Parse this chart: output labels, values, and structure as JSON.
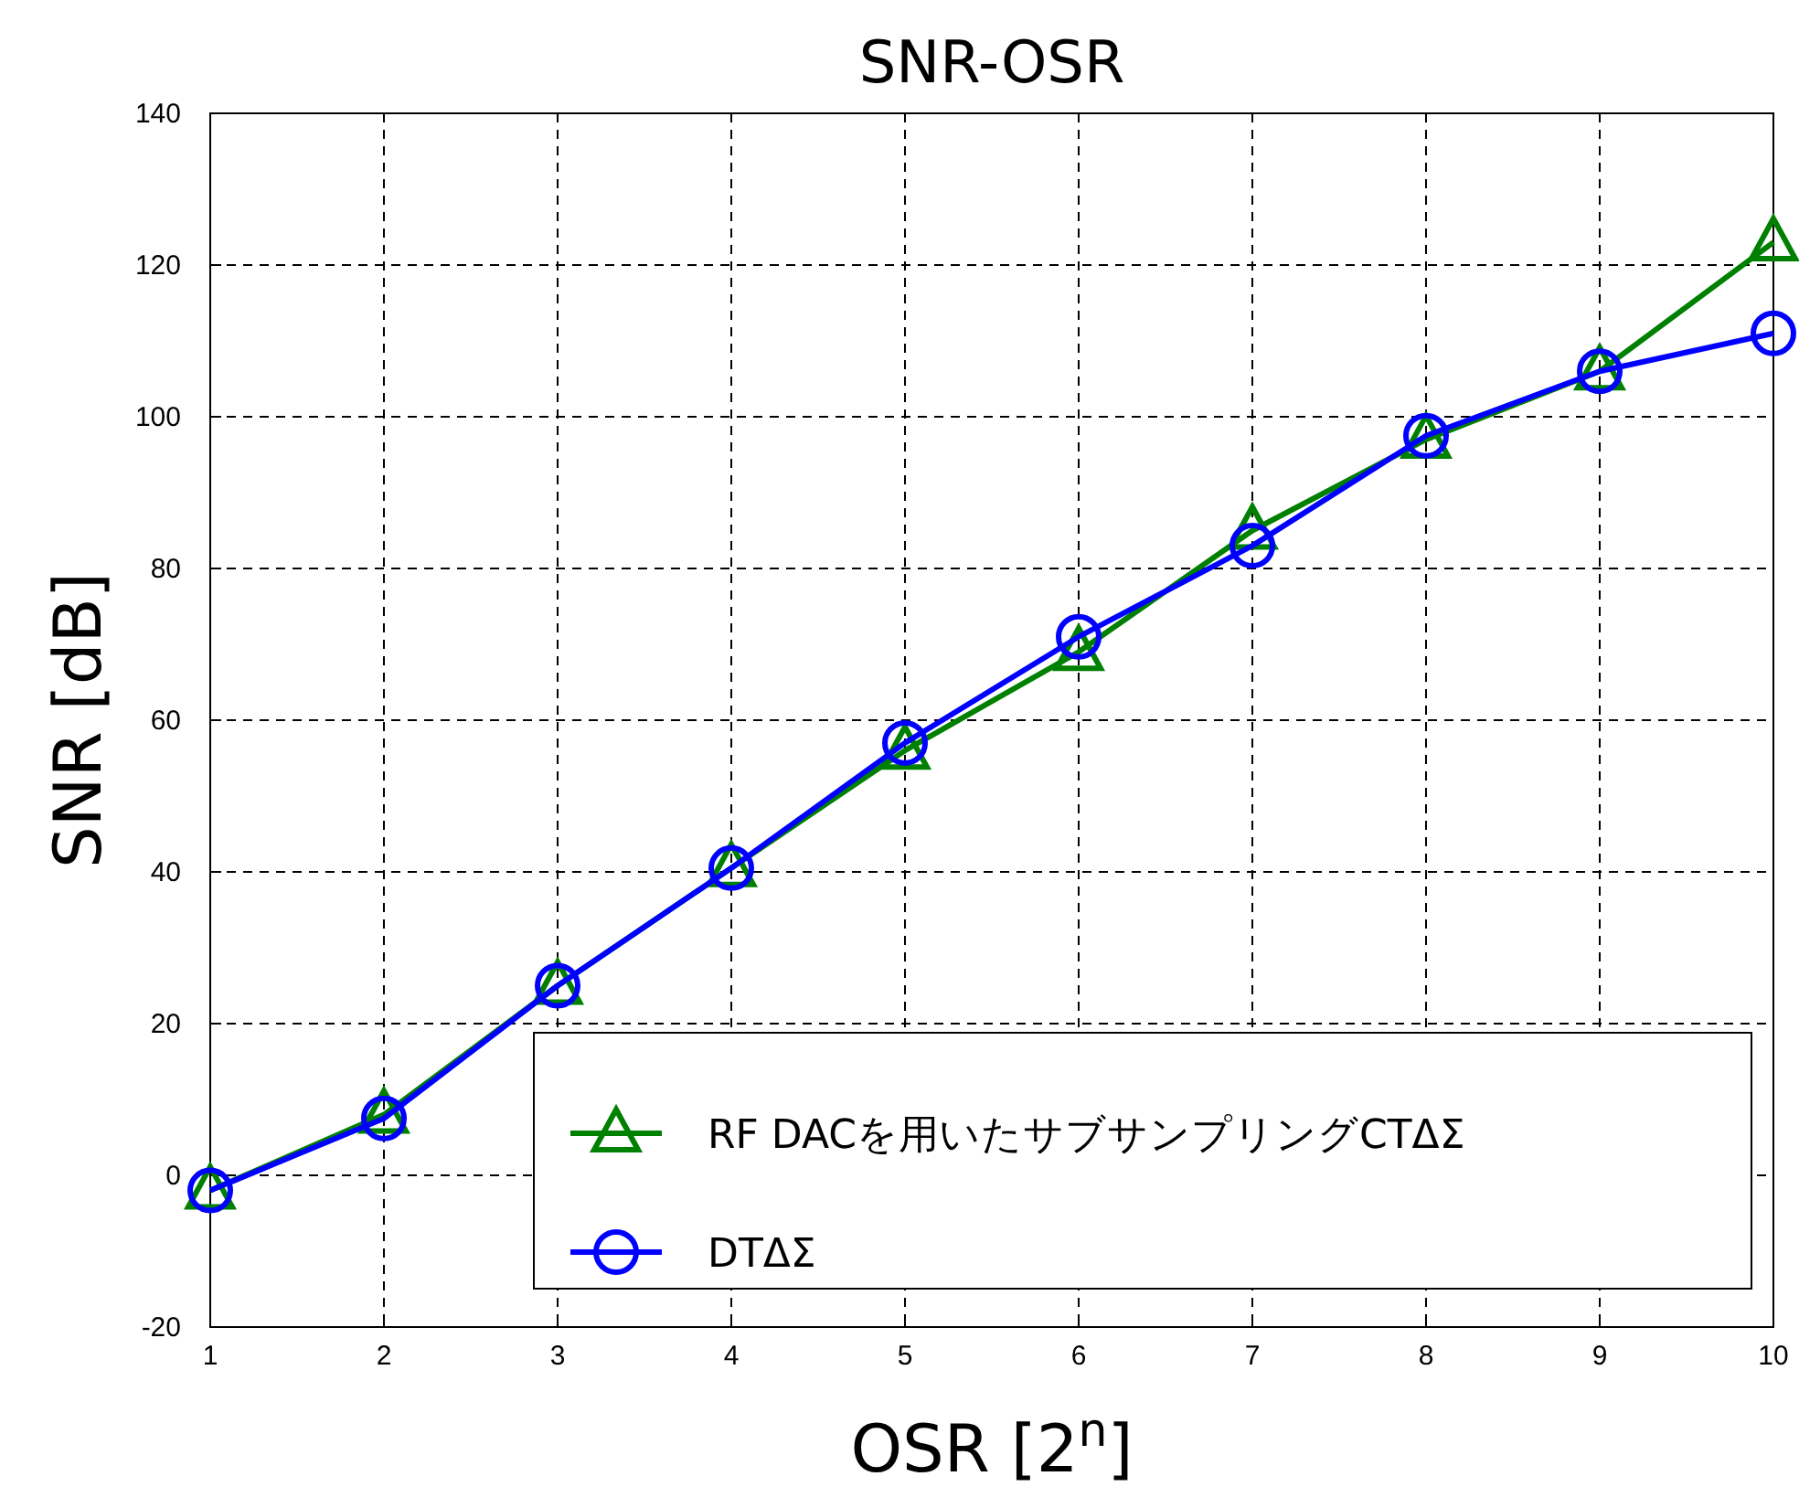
{
  "chart_data": {
    "type": "line",
    "title": "SNR-OSR",
    "xlabel": "OSR [2$^{n}$]",
    "ylabel": "SNR [dB]",
    "x": [
      1,
      2,
      3,
      4,
      5,
      6,
      7,
      8,
      9,
      10
    ],
    "xlim": [
      1,
      10
    ],
    "xticks": [
      1,
      2,
      3,
      4,
      5,
      6,
      7,
      8,
      9,
      10
    ],
    "ylim": [
      -20,
      140
    ],
    "yticks": [
      -20,
      0,
      20,
      40,
      60,
      80,
      100,
      120,
      140
    ],
    "grid": true,
    "legend": "bottom right",
    "line_style": "solid",
    "series": [
      {
        "name": "RF DACを用いたサブサンプリングCTΔΣ",
        "color": "#008000",
        "marker": "triangle",
        "values": [
          -2,
          8,
          25,
          40.5,
          56,
          69,
          85,
          97,
          106,
          123
        ]
      },
      {
        "name": "DTΔΣ",
        "color": "#0000ff",
        "marker": "circle",
        "values": [
          -2,
          7.5,
          25,
          40.5,
          57,
          71,
          83,
          97.5,
          106,
          111
        ]
      }
    ]
  }
}
